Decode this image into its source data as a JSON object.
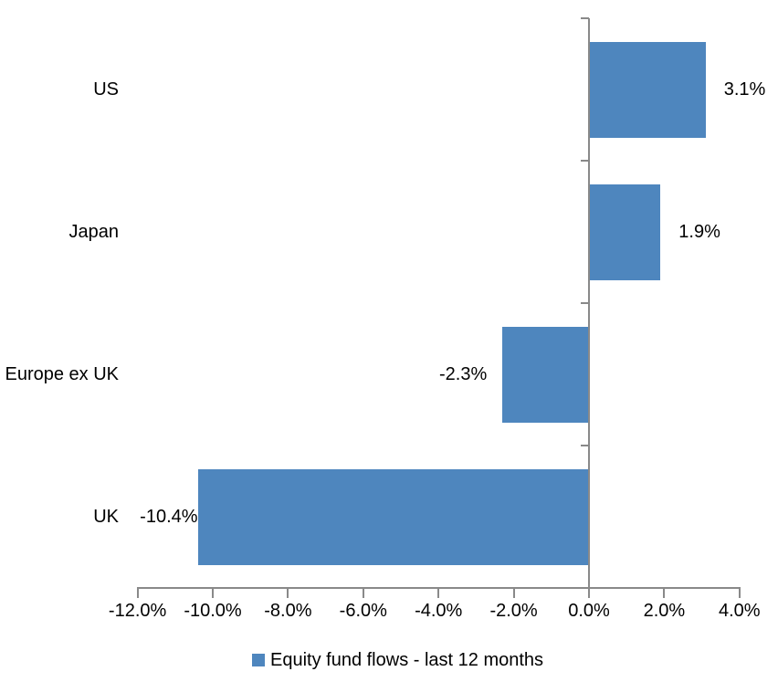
{
  "chart_data": {
    "type": "bar",
    "orientation": "horizontal",
    "title": "",
    "categories": [
      "US",
      "Japan",
      "Europe ex UK",
      "UK"
    ],
    "values": [
      3.1,
      1.9,
      -2.3,
      -10.4
    ],
    "value_labels": [
      "3.1%",
      "1.9%",
      "-2.3%",
      "-10.4%"
    ],
    "x_axis": {
      "min": -12,
      "max": 4,
      "step": 2,
      "tick_labels": [
        "-12.0%",
        "-10.0%",
        "-8.0%",
        "-6.0%",
        "-4.0%",
        "-2.0%",
        "0.0%",
        "2.0%",
        "4.0%"
      ]
    },
    "legend": {
      "label": "Equity fund flows - last 12 months",
      "position": "bottom"
    },
    "grid": false,
    "colors": {
      "bar": "#4E86BE",
      "axis": "#898989",
      "text": "#000000",
      "background": "#FFFFFF"
    }
  }
}
